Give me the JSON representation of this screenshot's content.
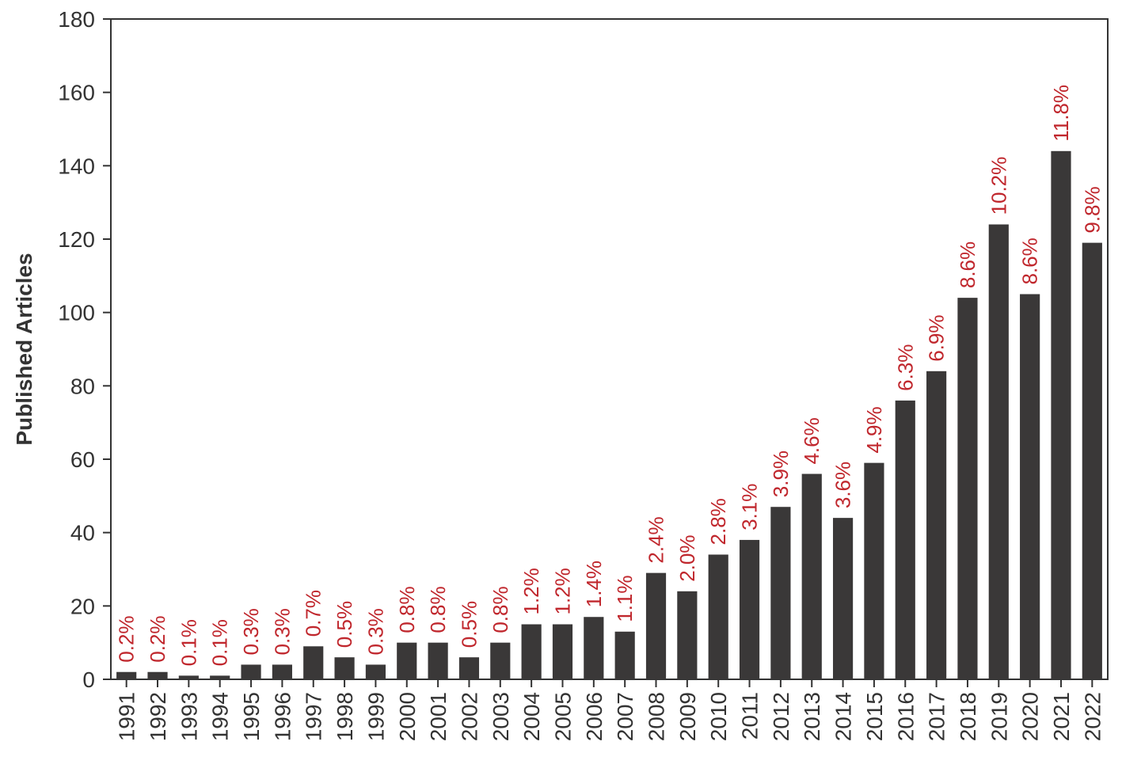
{
  "chart_data": {
    "type": "bar",
    "title": "",
    "xlabel": "",
    "ylabel": "Published Articles",
    "ylim": [
      0,
      180
    ],
    "yticks": [
      0,
      20,
      40,
      60,
      80,
      100,
      120,
      140,
      160,
      180
    ],
    "grid": false,
    "legend": "none",
    "categories": [
      "1991",
      "1992",
      "1993",
      "1994",
      "1995",
      "1996",
      "1997",
      "1998",
      "1999",
      "2000",
      "2001",
      "2002",
      "2003",
      "2004",
      "2005",
      "2006",
      "2007",
      "2008",
      "2009",
      "2010",
      "2011",
      "2012",
      "2013",
      "2014",
      "2015",
      "2016",
      "2017",
      "2018",
      "2019",
      "2020",
      "2021",
      "2022"
    ],
    "values": [
      2,
      2,
      1,
      1,
      4,
      4,
      9,
      6,
      4,
      10,
      10,
      6,
      10,
      15,
      15,
      17,
      13,
      29,
      24,
      34,
      38,
      47,
      56,
      44,
      59,
      76,
      84,
      104,
      124,
      105,
      144,
      119
    ],
    "data_labels": [
      "0.2%",
      "0.2%",
      "0.1%",
      "0.1%",
      "0.3%",
      "0.3%",
      "0.7%",
      "0.5%",
      "0.3%",
      "0.8%",
      "0.8%",
      "0.5%",
      "0.8%",
      "1.2%",
      "1.2%",
      "1.4%",
      "1.1%",
      "2.4%",
      "2.0%",
      "2.8%",
      "3.1%",
      "3.9%",
      "4.6%",
      "3.6%",
      "4.9%",
      "6.3%",
      "6.9%",
      "8.6%",
      "10.2%",
      "8.6%",
      "11.8%",
      "9.8%"
    ],
    "colors": {
      "bar": "#3a3838",
      "label": "#c0272d",
      "axis": "#333333"
    }
  }
}
